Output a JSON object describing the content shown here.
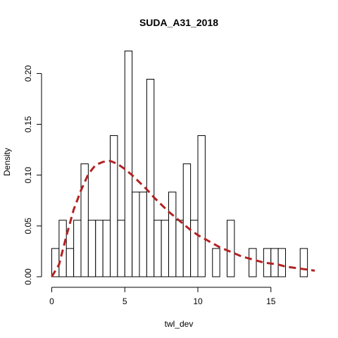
{
  "chart_data": {
    "type": "bar",
    "title": "SUDA_A31_2018",
    "xlabel": "twl_dev",
    "ylabel": "Density",
    "xlim": [
      0,
      18
    ],
    "ylim": [
      0,
      0.22
    ],
    "x_ticks": [
      0,
      5,
      10,
      15
    ],
    "x_tick_labels": [
      "0",
      "5",
      "10",
      "15"
    ],
    "y_ticks": [
      0.0,
      0.05,
      0.1,
      0.15,
      0.2
    ],
    "y_tick_labels": [
      "0.00",
      "0.05",
      "0.10",
      "0.15",
      "0.20"
    ],
    "bin_width": 0.5,
    "histogram_bins": [
      {
        "x0": 0.0,
        "x1": 0.5,
        "density": 0.0278
      },
      {
        "x0": 0.5,
        "x1": 1.0,
        "density": 0.0556
      },
      {
        "x0": 1.0,
        "x1": 1.5,
        "density": 0.0278
      },
      {
        "x0": 1.5,
        "x1": 2.0,
        "density": 0.0556
      },
      {
        "x0": 2.0,
        "x1": 2.5,
        "density": 0.1111
      },
      {
        "x0": 2.5,
        "x1": 3.0,
        "density": 0.0556
      },
      {
        "x0": 3.0,
        "x1": 3.5,
        "density": 0.0556
      },
      {
        "x0": 3.5,
        "x1": 4.0,
        "density": 0.0556
      },
      {
        "x0": 4.0,
        "x1": 4.5,
        "density": 0.1389
      },
      {
        "x0": 4.5,
        "x1": 5.0,
        "density": 0.0556
      },
      {
        "x0": 5.0,
        "x1": 5.5,
        "density": 0.2222
      },
      {
        "x0": 5.5,
        "x1": 6.0,
        "density": 0.0833
      },
      {
        "x0": 6.0,
        "x1": 6.5,
        "density": 0.0833
      },
      {
        "x0": 6.5,
        "x1": 7.0,
        "density": 0.1944
      },
      {
        "x0": 7.0,
        "x1": 7.5,
        "density": 0.0556
      },
      {
        "x0": 7.5,
        "x1": 8.0,
        "density": 0.0556
      },
      {
        "x0": 8.0,
        "x1": 8.5,
        "density": 0.0833
      },
      {
        "x0": 8.5,
        "x1": 9.0,
        "density": 0.0556
      },
      {
        "x0": 9.0,
        "x1": 9.5,
        "density": 0.1111
      },
      {
        "x0": 9.5,
        "x1": 10.0,
        "density": 0.0556
      },
      {
        "x0": 10.0,
        "x1": 10.5,
        "density": 0.1389
      },
      {
        "x0": 10.5,
        "x1": 11.0,
        "density": 0.0
      },
      {
        "x0": 11.0,
        "x1": 11.5,
        "density": 0.0278
      },
      {
        "x0": 11.5,
        "x1": 12.0,
        "density": 0.0
      },
      {
        "x0": 12.0,
        "x1": 12.5,
        "density": 0.0556
      },
      {
        "x0": 12.5,
        "x1": 13.0,
        "density": 0.0
      },
      {
        "x0": 13.0,
        "x1": 13.5,
        "density": 0.0
      },
      {
        "x0": 13.5,
        "x1": 14.0,
        "density": 0.0278
      },
      {
        "x0": 14.0,
        "x1": 14.5,
        "density": 0.0
      },
      {
        "x0": 14.5,
        "x1": 15.0,
        "density": 0.0278
      },
      {
        "x0": 15.0,
        "x1": 15.5,
        "density": 0.0278
      },
      {
        "x0": 15.5,
        "x1": 16.0,
        "density": 0.0278
      },
      {
        "x0": 16.0,
        "x1": 16.5,
        "density": 0.0
      },
      {
        "x0": 16.5,
        "x1": 17.0,
        "density": 0.0
      },
      {
        "x0": 17.0,
        "x1": 17.5,
        "density": 0.0278
      }
    ],
    "density_curve": {
      "style": "dashed",
      "color": "#B22222",
      "points": [
        [
          0.0,
          0.0
        ],
        [
          0.5,
          0.012
        ],
        [
          1.0,
          0.04
        ],
        [
          1.5,
          0.066
        ],
        [
          2.0,
          0.085
        ],
        [
          2.5,
          0.101
        ],
        [
          3.0,
          0.11
        ],
        [
          3.5,
          0.113
        ],
        [
          4.0,
          0.114
        ],
        [
          4.5,
          0.111
        ],
        [
          5.0,
          0.106
        ],
        [
          5.5,
          0.1
        ],
        [
          6.0,
          0.093
        ],
        [
          6.5,
          0.086
        ],
        [
          7.0,
          0.078
        ],
        [
          7.5,
          0.071
        ],
        [
          8.0,
          0.064
        ],
        [
          8.5,
          0.058
        ],
        [
          9.0,
          0.052
        ],
        [
          9.5,
          0.046
        ],
        [
          10.0,
          0.041
        ],
        [
          10.5,
          0.037
        ],
        [
          11.0,
          0.033
        ],
        [
          11.5,
          0.029
        ],
        [
          12.0,
          0.026
        ],
        [
          12.5,
          0.023
        ],
        [
          13.0,
          0.02
        ],
        [
          13.5,
          0.018
        ],
        [
          14.0,
          0.016
        ],
        [
          14.5,
          0.014
        ],
        [
          15.0,
          0.013
        ],
        [
          15.5,
          0.012
        ],
        [
          16.0,
          0.01
        ],
        [
          16.5,
          0.009
        ],
        [
          17.0,
          0.008
        ],
        [
          17.5,
          0.007
        ],
        [
          18.0,
          0.006
        ]
      ]
    },
    "grid": false,
    "bar_fill": "#ffffff",
    "bar_stroke": "#000000"
  }
}
